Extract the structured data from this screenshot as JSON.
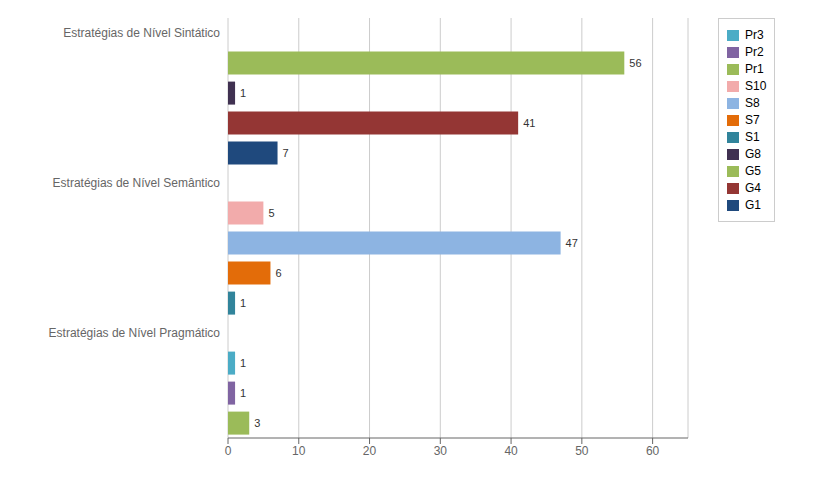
{
  "chart_data": {
    "type": "bar",
    "orientation": "horizontal",
    "categories": [
      "Estratégias de Nível Sintático",
      "Estratégias de Nível Semântico",
      "Estratégias de Nível Pragmático"
    ],
    "series": [
      {
        "name": "Pr3",
        "color": "#4BACC6",
        "values": [
          null,
          null,
          1
        ]
      },
      {
        "name": "Pr2",
        "color": "#8064A2",
        "values": [
          null,
          null,
          1
        ]
      },
      {
        "name": "Pr1",
        "color": "#9BBB59",
        "values": [
          56,
          null,
          null
        ]
      },
      {
        "name": "S10",
        "color": "#F2ABAB",
        "values": [
          null,
          5,
          null
        ]
      },
      {
        "name": "S8",
        "color": "#8DB4E2",
        "values": [
          null,
          47,
          null
        ]
      },
      {
        "name": "S7",
        "color": "#E36C09",
        "values": [
          null,
          6,
          null
        ]
      },
      {
        "name": "S1",
        "color": "#31849B",
        "values": [
          null,
          1,
          null
        ]
      },
      {
        "name": "G8",
        "color": "#403151",
        "values": [
          1,
          null,
          null
        ]
      },
      {
        "name": "G5",
        "color": "#9BBB59",
        "values": [
          null,
          null,
          3
        ]
      },
      {
        "name": "G4",
        "color": "#943634",
        "values": [
          41,
          null,
          null
        ]
      },
      {
        "name": "G1",
        "color": "#1F497D",
        "values": [
          7,
          null,
          null
        ]
      }
    ],
    "xlim": [
      0,
      65
    ],
    "xticks": [
      0,
      10,
      20,
      30,
      40,
      50,
      60
    ],
    "grid": true,
    "data_labels": true,
    "legend": "right"
  }
}
